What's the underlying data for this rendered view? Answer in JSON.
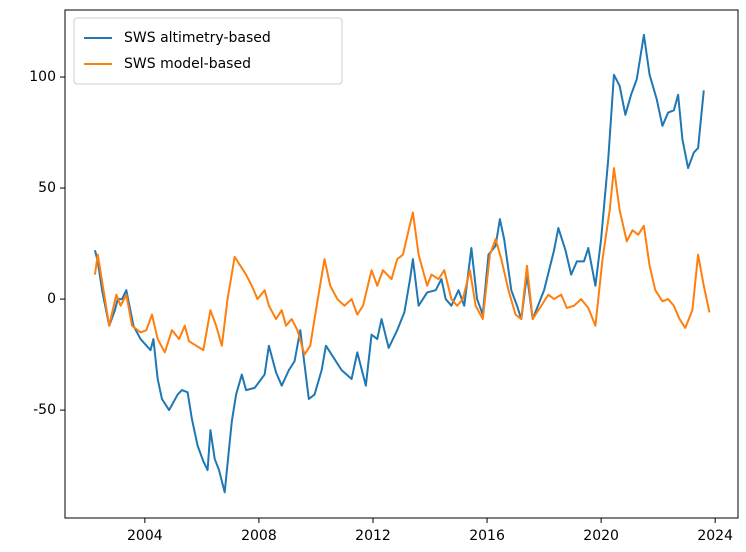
{
  "chart_data": {
    "type": "line",
    "xlim": [
      2001.2,
      2024.8
    ],
    "ylim": [
      -98.6,
      130.2
    ],
    "xticks": [
      2004,
      2008,
      2012,
      2016,
      2020,
      2024
    ],
    "yticks": [
      -50,
      0,
      50,
      100
    ],
    "legend": "upper left",
    "series": [
      {
        "name": "SWS altimetry-based",
        "color": "#1f77b4",
        "x": [
          2002.25,
          2002.35,
          2002.5,
          2002.75,
          2002.95,
          2003.05,
          2003.2,
          2003.35,
          2003.6,
          2003.85,
          2004.2,
          2004.3,
          2004.45,
          2004.6,
          2004.85,
          2005.15,
          2005.3,
          2005.5,
          2005.65,
          2005.85,
          2006.05,
          2006.2,
          2006.3,
          2006.45,
          2006.6,
          2006.8,
          2007.05,
          2007.2,
          2007.4,
          2007.55,
          2007.85,
          2008.2,
          2008.35,
          2008.6,
          2008.8,
          2009.05,
          2009.25,
          2009.45,
          2009.75,
          2009.95,
          2010.2,
          2010.35,
          2010.55,
          2010.9,
          2011.25,
          2011.45,
          2011.75,
          2011.95,
          2012.15,
          2012.3,
          2012.55,
          2012.85,
          2013.1,
          2013.3,
          2013.4,
          2013.6,
          2013.9,
          2014.2,
          2014.4,
          2014.55,
          2014.75,
          2015.0,
          2015.2,
          2015.45,
          2015.65,
          2015.85,
          2016.05,
          2016.3,
          2016.45,
          2016.6,
          2016.85,
          2017.05,
          2017.2,
          2017.4,
          2017.6,
          2018.0,
          2018.35,
          2018.5,
          2018.75,
          2018.95,
          2019.15,
          2019.4,
          2019.55,
          2019.8,
          2020.0,
          2020.25,
          2020.45,
          2020.65,
          2020.85,
          2021.05,
          2021.25,
          2021.5,
          2021.7,
          2021.95,
          2022.15,
          2022.35,
          2022.55,
          2022.7,
          2022.85,
          2023.05,
          2023.25,
          2023.4,
          2023.6
        ],
        "values": [
          22,
          17,
          4,
          -12,
          -5,
          0,
          0,
          4,
          -12,
          -18,
          -23,
          -18,
          -36,
          -45,
          -50,
          -43,
          -41,
          -42,
          -54,
          -66,
          -73,
          -77,
          -59,
          -72,
          -77,
          -87,
          -55,
          -43,
          -34,
          -41,
          -40,
          -34,
          -21,
          -33,
          -39,
          -32,
          -28,
          -14,
          -45,
          -43,
          -32,
          -21,
          -25,
          -32,
          -36,
          -24,
          -39,
          -16,
          -18,
          -9,
          -22,
          -14,
          -6,
          9,
          18,
          -3,
          3,
          4,
          9,
          0,
          -3,
          4,
          -3,
          23,
          0,
          -7,
          20,
          24,
          36,
          27,
          4,
          -3,
          -9,
          11,
          -9,
          4,
          22,
          32,
          22,
          11,
          17,
          17,
          23,
          6,
          27,
          63,
          101,
          96,
          83,
          92,
          99,
          119,
          101,
          90,
          78,
          84,
          85,
          92,
          72,
          59,
          66,
          68,
          94
        ]
      },
      {
        "name": "SWS model-based",
        "color": "#ff7f0e",
        "x": [
          2002.25,
          2002.35,
          2002.6,
          2002.75,
          2003.0,
          2003.15,
          2003.35,
          2003.55,
          2003.85,
          2004.05,
          2004.25,
          2004.45,
          2004.7,
          2004.95,
          2005.2,
          2005.4,
          2005.55,
          2005.8,
          2006.05,
          2006.3,
          2006.5,
          2006.7,
          2006.9,
          2007.15,
          2007.35,
          2007.55,
          2007.75,
          2007.95,
          2008.2,
          2008.35,
          2008.6,
          2008.8,
          2008.95,
          2009.15,
          2009.35,
          2009.6,
          2009.8,
          2010.0,
          2010.3,
          2010.5,
          2010.75,
          2011.0,
          2011.25,
          2011.45,
          2011.65,
          2011.95,
          2012.15,
          2012.35,
          2012.65,
          2012.85,
          2013.05,
          2013.25,
          2013.4,
          2013.6,
          2013.9,
          2014.05,
          2014.3,
          2014.5,
          2014.75,
          2014.95,
          2015.15,
          2015.4,
          2015.6,
          2015.85,
          2016.1,
          2016.3,
          2016.5,
          2016.75,
          2017.0,
          2017.2,
          2017.4,
          2017.6,
          2017.9,
          2018.15,
          2018.35,
          2018.6,
          2018.8,
          2019.05,
          2019.3,
          2019.55,
          2019.8,
          2020.05,
          2020.3,
          2020.45,
          2020.65,
          2020.9,
          2021.1,
          2021.3,
          2021.5,
          2021.7,
          2021.9,
          2022.15,
          2022.35,
          2022.55,
          2022.75,
          2022.95,
          2023.2,
          2023.4,
          2023.6,
          2023.8
        ],
        "values": [
          11,
          20,
          0,
          -12,
          2,
          -3,
          2,
          -12,
          -15,
          -14,
          -7,
          -18,
          -24,
          -14,
          -18,
          -12,
          -19,
          -21,
          -23,
          -5,
          -12,
          -21,
          0,
          19,
          15,
          11,
          6,
          0,
          4,
          -3,
          -9,
          -5,
          -12,
          -9,
          -14,
          -25,
          -21,
          -5,
          18,
          6,
          0,
          -3,
          0,
          -7,
          -3,
          13,
          6,
          13,
          9,
          18,
          20,
          31,
          39,
          20,
          6,
          11,
          9,
          13,
          0,
          -3,
          0,
          13,
          -3,
          -9,
          20,
          27,
          18,
          4,
          -7,
          -9,
          15,
          -9,
          -3,
          2,
          0,
          2,
          -4,
          -3,
          0,
          -4,
          -12,
          18,
          40,
          59,
          40,
          26,
          31,
          29,
          33,
          15,
          4,
          -1,
          0,
          -3,
          -9,
          -13,
          -5,
          20,
          6,
          -6
        ]
      }
    ]
  }
}
